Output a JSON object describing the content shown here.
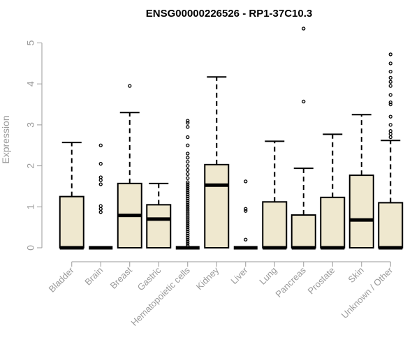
{
  "chart_data": {
    "type": "boxplot",
    "title": "ENSG00000226526 - RP1-37C10.3",
    "ylabel": "Expression",
    "ylim": [
      0,
      5.2
    ],
    "yticks": [
      0,
      1,
      2,
      3,
      4,
      5
    ],
    "box_fill": "#efe8cf",
    "categories": [
      "Bladder",
      "Brain",
      "Breast",
      "Gastric",
      "Hematopoietic cells",
      "Kidney",
      "Liver",
      "Lung",
      "Pancreas",
      "Prostate",
      "Skin",
      "Unknown / Other"
    ],
    "boxes": [
      {
        "q1": 0,
        "median": 0,
        "q3": 1.25,
        "whisker_low": 0,
        "whisker_high": 2.57,
        "outliers": []
      },
      {
        "q1": 0,
        "median": 0,
        "q3": 0,
        "whisker_low": 0,
        "whisker_high": 0,
        "outliers": [
          0.87,
          0.95,
          1.02,
          1.55,
          1.65,
          1.72,
          2.05,
          2.5
        ]
      },
      {
        "q1": 0,
        "median": 0.79,
        "q3": 1.57,
        "whisker_low": 0,
        "whisker_high": 3.3,
        "outliers": [
          3.95
        ]
      },
      {
        "q1": 0,
        "median": 0.7,
        "q3": 1.05,
        "whisker_low": 0,
        "whisker_high": 1.57,
        "outliers": []
      },
      {
        "q1": 0,
        "median": 0,
        "q3": 0,
        "whisker_low": 0,
        "whisker_high": 0,
        "outliers": [
          0.05,
          0.1,
          0.15,
          0.2,
          0.25,
          0.3,
          0.35,
          0.4,
          0.45,
          0.5,
          0.55,
          0.6,
          0.65,
          0.7,
          0.75,
          0.8,
          0.85,
          0.9,
          0.95,
          1.0,
          1.05,
          1.1,
          1.15,
          1.2,
          1.25,
          1.3,
          1.35,
          1.4,
          1.45,
          1.5,
          1.55,
          1.6,
          1.7,
          1.8,
          1.9,
          2.0,
          2.1,
          2.2,
          2.3,
          2.5,
          2.7,
          2.95,
          3.05,
          3.1
        ]
      },
      {
        "q1": 0,
        "median": 1.53,
        "q3": 2.03,
        "whisker_low": 0,
        "whisker_high": 4.17,
        "outliers": []
      },
      {
        "q1": 0,
        "median": 0,
        "q3": 0,
        "whisker_low": 0,
        "whisker_high": 0,
        "outliers": [
          0.2,
          0.9,
          0.95,
          1.62
        ]
      },
      {
        "q1": 0,
        "median": 0,
        "q3": 1.12,
        "whisker_low": 0,
        "whisker_high": 2.6,
        "outliers": []
      },
      {
        "q1": 0,
        "median": 0,
        "q3": 0.8,
        "whisker_low": 0,
        "whisker_high": 1.94,
        "outliers": [
          3.57,
          5.35
        ]
      },
      {
        "q1": 0,
        "median": 0,
        "q3": 1.23,
        "whisker_low": 0,
        "whisker_high": 2.77,
        "outliers": []
      },
      {
        "q1": 0,
        "median": 0.68,
        "q3": 1.77,
        "whisker_low": 0,
        "whisker_high": 3.25,
        "outliers": []
      },
      {
        "q1": 0,
        "median": 0,
        "q3": 1.1,
        "whisker_low": 0,
        "whisker_high": 2.62,
        "outliers": [
          2.7,
          2.78,
          2.85,
          3.0,
          3.2,
          3.5,
          3.55,
          3.73,
          3.95,
          4.05,
          4.15,
          4.3,
          4.5,
          4.72
        ]
      }
    ]
  }
}
